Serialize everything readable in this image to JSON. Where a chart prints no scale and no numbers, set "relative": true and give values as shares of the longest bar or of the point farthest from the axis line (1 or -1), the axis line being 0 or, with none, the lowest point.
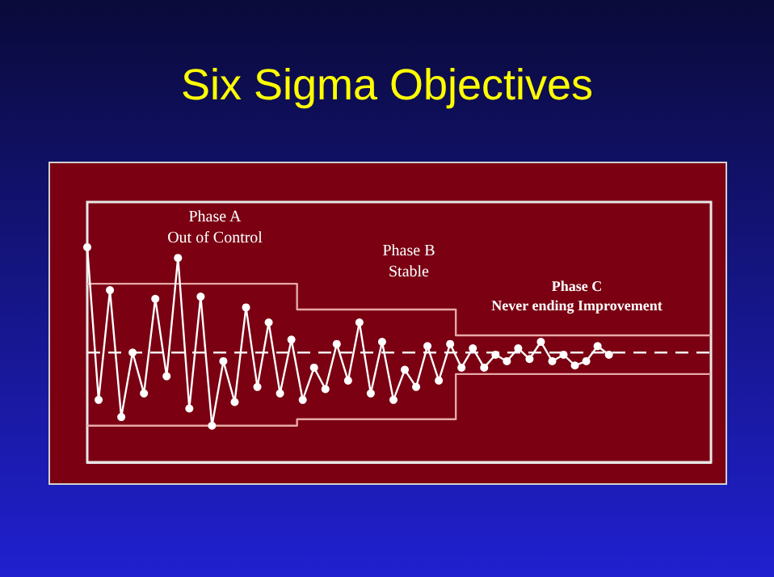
{
  "chart_data": {
    "type": "line",
    "title": "Six Sigma Objectives",
    "relative": true,
    "annotations": [
      "Phase A\nOut of Control",
      "Phase B\nStable",
      "Phase C\nNever ending Improvement"
    ],
    "categories": [
      null,
      null,
      null,
      null,
      null,
      null,
      null,
      null,
      null,
      null,
      null,
      null,
      null,
      null,
      null,
      null,
      null,
      null,
      null,
      null,
      null,
      null,
      null,
      null,
      null,
      null,
      null,
      null,
      null,
      null,
      null,
      null,
      null,
      null,
      null,
      null,
      null,
      null,
      null,
      null,
      null,
      null,
      null,
      null,
      null,
      null,
      null,
      null,
      null,
      null,
      null,
      null,
      null,
      null,
      null,
      null
    ],
    "marker": "circle",
    "line_style": "solid",
    "series": [
      {
        "color": "#ffffff",
        "values": [
          1.0,
          0.29,
          0.8,
          0.21,
          0.51,
          0.32,
          0.76,
          0.4,
          0.95,
          0.25,
          0.77,
          0.17,
          0.47,
          0.28,
          0.72,
          0.35,
          0.65,
          0.32,
          0.57,
          0.29,
          0.44,
          0.34,
          0.55,
          0.38,
          0.65,
          0.32,
          0.56,
          0.29,
          0.43,
          0.35,
          0.54,
          0.38,
          0.55,
          0.44,
          0.53,
          0.44,
          0.5,
          0.47,
          0.53,
          0.48,
          0.56,
          0.47,
          0.5,
          0.45,
          0.47,
          0.54,
          0.5,
          null,
          null,
          null,
          null,
          null,
          null,
          null,
          null,
          null
        ]
      },
      {
        "type": "line",
        "color": "#f0f0f0",
        "values": [
          0.51,
          0.51,
          0.51,
          0.51,
          0.51,
          0.51,
          0.51,
          0.51,
          0.51,
          0.51,
          0.51,
          0.51,
          0.51,
          0.51,
          0.51,
          0.51,
          0.51,
          0.51,
          0.51,
          0.51,
          0.51,
          0.51,
          0.51,
          0.51,
          0.51,
          0.51,
          0.51,
          0.51,
          0.51,
          0.51,
          0.51,
          0.51,
          0.51,
          0.51,
          0.51,
          0.51,
          0.51,
          0.51,
          0.51,
          0.51,
          0.51,
          0.51,
          0.51,
          0.51,
          0.51,
          0.51,
          0.51,
          0.51,
          0.51,
          0.51,
          0.51,
          0.51,
          0.51,
          0.51,
          0.51,
          0.51
        ],
        "marker": "none",
        "line_style": "dashed"
      },
      {
        "type": "step",
        "color": "#e8a8a8",
        "values": [
          0.83,
          0.83,
          0.83,
          0.83,
          0.83,
          0.83,
          0.83,
          0.83,
          0.83,
          0.83,
          0.83,
          0.83,
          0.83,
          0.83,
          0.83,
          0.83,
          0.83,
          0.83,
          0.83,
          0.71,
          0.71,
          0.71,
          0.71,
          0.71,
          0.71,
          0.71,
          0.71,
          0.71,
          0.71,
          0.71,
          0.71,
          0.71,
          0.71,
          0.59,
          0.59,
          0.59,
          0.59,
          0.59,
          0.59,
          0.59,
          0.59,
          0.59,
          0.59,
          0.59,
          0.59,
          0.59,
          0.59,
          0.59,
          0.59,
          0.59,
          0.59,
          0.59,
          0.59,
          0.59,
          0.59,
          0.59
        ],
        "marker": "none"
      },
      {
        "type": "step",
        "color": "#e8a8a8",
        "values": [
          0.17,
          0.17,
          0.17,
          0.17,
          0.17,
          0.17,
          0.17,
          0.17,
          0.17,
          0.17,
          0.17,
          0.17,
          0.17,
          0.17,
          0.17,
          0.17,
          0.17,
          0.17,
          0.17,
          0.2,
          0.2,
          0.2,
          0.2,
          0.2,
          0.2,
          0.2,
          0.2,
          0.2,
          0.2,
          0.2,
          0.2,
          0.2,
          0.2,
          0.41,
          0.41,
          0.41,
          0.41,
          0.41,
          0.41,
          0.41,
          0.41,
          0.41,
          0.41,
          0.41,
          0.41,
          0.41,
          0.41,
          0.41,
          0.41,
          0.41,
          0.41,
          0.41,
          0.41,
          0.41,
          0.41,
          0.41
        ],
        "marker": "none"
      }
    ]
  }
}
